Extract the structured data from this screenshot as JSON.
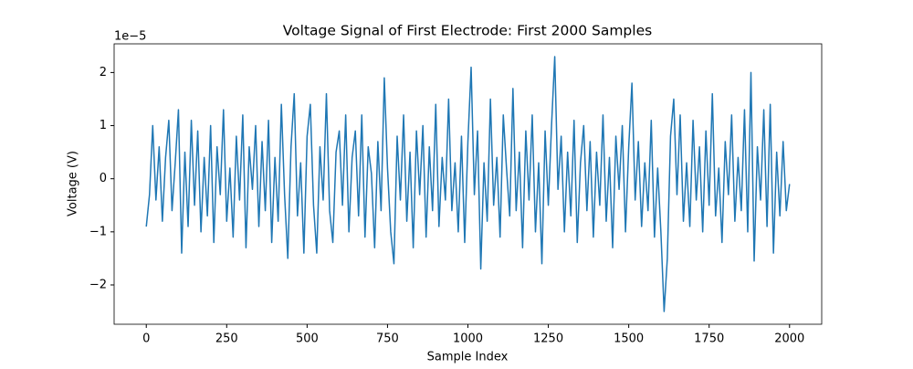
{
  "chart_data": {
    "type": "line",
    "title": "Voltage Signal of First Electrode: First 2000 Samples",
    "x_label": "Sample Index",
    "y_label": "Voltage (V)",
    "y_offset_label": "1e−5",
    "x": [
      0,
      10,
      20,
      30,
      40,
      50,
      60,
      70,
      80,
      90,
      100,
      110,
      120,
      130,
      140,
      150,
      160,
      170,
      180,
      190,
      200,
      210,
      220,
      230,
      240,
      250,
      260,
      270,
      280,
      290,
      300,
      310,
      320,
      330,
      340,
      350,
      360,
      370,
      380,
      390,
      400,
      410,
      420,
      430,
      440,
      450,
      460,
      470,
      480,
      490,
      500,
      510,
      520,
      530,
      540,
      550,
      560,
      570,
      580,
      590,
      600,
      610,
      620,
      630,
      640,
      650,
      660,
      670,
      680,
      690,
      700,
      710,
      720,
      730,
      740,
      750,
      760,
      770,
      780,
      790,
      800,
      810,
      820,
      830,
      840,
      850,
      860,
      870,
      880,
      890,
      900,
      910,
      920,
      930,
      940,
      950,
      960,
      970,
      980,
      990,
      1000,
      1010,
      1020,
      1030,
      1040,
      1050,
      1060,
      1070,
      1080,
      1090,
      1100,
      1110,
      1120,
      1130,
      1140,
      1150,
      1160,
      1170,
      1180,
      1190,
      1200,
      1210,
      1220,
      1230,
      1240,
      1250,
      1260,
      1270,
      1280,
      1290,
      1300,
      1310,
      1320,
      1330,
      1340,
      1350,
      1360,
      1370,
      1380,
      1390,
      1400,
      1410,
      1420,
      1430,
      1440,
      1450,
      1460,
      1470,
      1480,
      1490,
      1500,
      1510,
      1520,
      1530,
      1540,
      1550,
      1560,
      1570,
      1580,
      1590,
      1600,
      1610,
      1620,
      1630,
      1640,
      1650,
      1660,
      1670,
      1680,
      1690,
      1700,
      1710,
      1720,
      1730,
      1740,
      1750,
      1760,
      1770,
      1780,
      1790,
      1800,
      1810,
      1820,
      1830,
      1840,
      1850,
      1860,
      1870,
      1880,
      1890,
      1900,
      1910,
      1920,
      1930,
      1940,
      1950,
      1960,
      1970,
      1980,
      1990,
      2000
    ],
    "series": [
      {
        "color": "#1f77b4",
        "values": [
          -0.9,
          -0.3,
          1.0,
          -0.4,
          0.6,
          -0.8,
          0.4,
          1.1,
          -0.6,
          0.3,
          1.3,
          -1.4,
          0.5,
          -0.9,
          1.1,
          -0.5,
          0.9,
          -1.0,
          0.4,
          -0.7,
          1.0,
          -1.2,
          0.6,
          -0.3,
          1.3,
          -0.8,
          0.2,
          -1.1,
          0.8,
          -0.4,
          1.2,
          -1.3,
          0.6,
          -0.2,
          1.0,
          -0.9,
          0.7,
          -0.6,
          1.1,
          -1.2,
          0.4,
          -0.8,
          1.4,
          -0.3,
          -1.5,
          0.6,
          1.6,
          -0.7,
          0.3,
          -1.4,
          0.8,
          1.4,
          -0.5,
          -1.4,
          0.6,
          -0.4,
          1.6,
          -0.6,
          -1.2,
          0.5,
          0.9,
          -0.5,
          1.2,
          -1.0,
          0.4,
          0.9,
          -0.7,
          1.2,
          -1.1,
          0.6,
          0.1,
          -1.3,
          0.7,
          -0.6,
          1.9,
          0.2,
          -1.0,
          -1.6,
          0.8,
          -0.4,
          1.2,
          -0.8,
          0.5,
          -1.3,
          0.9,
          -0.3,
          1.0,
          -1.1,
          0.6,
          -0.6,
          1.4,
          -0.9,
          0.4,
          -0.4,
          1.5,
          -0.6,
          0.3,
          -1.0,
          0.8,
          -1.2,
          0.7,
          2.1,
          -0.3,
          0.9,
          -1.7,
          0.3,
          -0.8,
          1.5,
          -0.5,
          0.4,
          -1.1,
          1.2,
          0.2,
          -0.7,
          1.7,
          -0.6,
          0.5,
          -1.3,
          0.9,
          -0.4,
          1.2,
          -1.0,
          0.3,
          -1.6,
          0.9,
          -0.5,
          1.0,
          2.3,
          -0.2,
          0.8,
          -1.0,
          0.5,
          -0.7,
          1.1,
          -1.2,
          0.3,
          1.0,
          -0.6,
          0.7,
          -1.1,
          0.5,
          -0.5,
          1.2,
          -0.8,
          0.4,
          -1.3,
          0.8,
          -0.2,
          1.0,
          -1.0,
          0.6,
          1.8,
          -0.4,
          0.7,
          -0.9,
          0.3,
          -0.6,
          1.1,
          -1.1,
          0.2,
          -1.0,
          -2.5,
          -1.5,
          0.8,
          1.5,
          -0.3,
          1.2,
          -0.8,
          0.3,
          -0.9,
          1.1,
          -0.4,
          0.6,
          -1.0,
          0.9,
          -0.5,
          1.6,
          -0.7,
          0.2,
          -1.2,
          0.7,
          -0.3,
          1.2,
          -0.8,
          0.4,
          -0.6,
          1.3,
          -1.0,
          2.0,
          -1.55,
          0.6,
          -0.4,
          1.3,
          -0.9,
          1.4,
          -1.4,
          0.5,
          -0.7,
          0.7,
          -0.6,
          -0.1
        ]
      }
    ],
    "xlim": [
      -100,
      2100
    ],
    "ylim": [
      -2.74,
      2.54
    ],
    "xticks": [
      0,
      250,
      500,
      750,
      1000,
      1250,
      1500,
      1750,
      2000
    ],
    "yticks": [
      {
        "value": -2,
        "label": "−2"
      },
      {
        "value": -1,
        "label": "−1"
      },
      0,
      1,
      2
    ],
    "grid": false
  }
}
